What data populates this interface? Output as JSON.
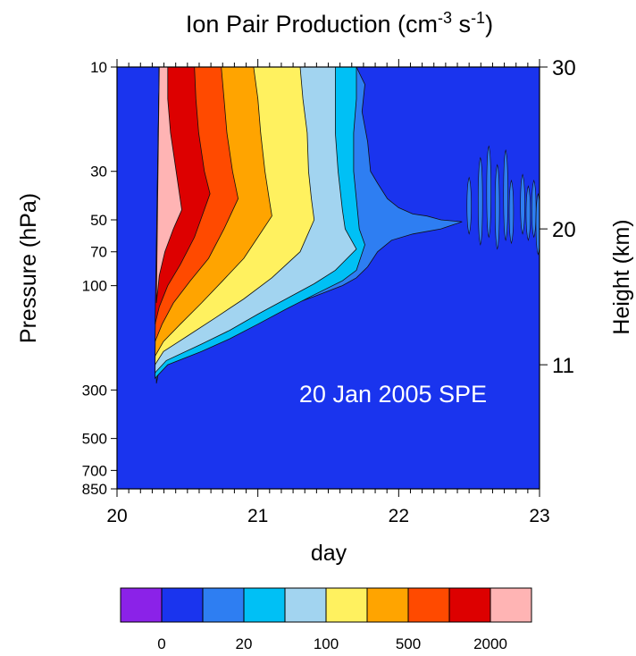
{
  "chart_data": {
    "type": "heatmap",
    "title_parts": {
      "main": "Ion Pair Production (cm",
      "exp1": "-3",
      "mid": " s",
      "exp2": "-1",
      "end": ")"
    },
    "xlabel": "day",
    "ylabel": "Pressure (hPa)",
    "y2label": "Height (km)",
    "annotation": "20 Jan 2005 SPE",
    "x_range": [
      20,
      23
    ],
    "x_ticks": [
      20,
      21,
      22,
      23
    ],
    "y_scale": "log",
    "y_range_hpa": [
      10,
      850
    ],
    "y_ticks": [
      10,
      30,
      50,
      70,
      100,
      300,
      500,
      700,
      850
    ],
    "y2_ticks_km": [
      30,
      20,
      11
    ],
    "y2_tick_pressures_hpa": [
      10,
      55,
      230
    ],
    "colorbar": {
      "colors": [
        "#8b22e8",
        "#1a34ee",
        "#2e7ef2",
        "#00c0f5",
        "#a2d4f0",
        "#fff15f",
        "#ffa400",
        "#ff4a00",
        "#dd0000",
        "#ffb4b4"
      ],
      "labels": [
        {
          "text": "0",
          "index": 1
        },
        {
          "text": "20",
          "index": 3
        },
        {
          "text": "100",
          "index": 5
        },
        {
          "text": "500",
          "index": 7
        },
        {
          "text": "2000",
          "index": 9
        }
      ]
    },
    "background_color": "#1a34ee",
    "contour_levels": [
      {
        "level": 1,
        "color": "#2e7ef2",
        "onset_day": 20.3,
        "bottom_pressure_hpa": 280,
        "top_boundary": [
          [
            20.3,
            10
          ],
          [
            21.7,
            10
          ],
          [
            21.76,
            12
          ],
          [
            21.74,
            16
          ],
          [
            21.78,
            22
          ],
          [
            21.8,
            30
          ],
          [
            21.85,
            34
          ],
          [
            21.92,
            40
          ],
          [
            22.0,
            44
          ],
          [
            22.1,
            47
          ],
          [
            22.2,
            48
          ],
          [
            22.3,
            50
          ],
          [
            22.45,
            51
          ]
        ],
        "bottom_boundary": [
          [
            20.28,
            280
          ],
          [
            20.3,
            240
          ],
          [
            20.38,
            220
          ],
          [
            20.6,
            190
          ],
          [
            20.8,
            160
          ],
          [
            21.0,
            140
          ],
          [
            21.2,
            125
          ],
          [
            21.4,
            112
          ],
          [
            21.6,
            100
          ],
          [
            21.7,
            92
          ],
          [
            21.78,
            82
          ],
          [
            21.85,
            70
          ],
          [
            21.95,
            62
          ],
          [
            22.1,
            58
          ],
          [
            22.3,
            55
          ],
          [
            22.45,
            51
          ]
        ]
      },
      {
        "level": 2,
        "color": "#00c0f5",
        "top": [
          [
            20.3,
            10
          ],
          [
            21.7,
            10
          ],
          [
            21.7,
            14
          ],
          [
            21.68,
            20
          ],
          [
            21.68,
            30
          ],
          [
            21.72,
            55
          ],
          [
            21.76,
            65
          ]
        ],
        "bottom": [
          [
            20.27,
            265
          ],
          [
            20.36,
            230
          ],
          [
            20.6,
            200
          ],
          [
            20.8,
            175
          ],
          [
            21.0,
            150
          ],
          [
            21.2,
            128
          ],
          [
            21.4,
            110
          ],
          [
            21.6,
            95
          ],
          [
            21.7,
            85
          ],
          [
            21.76,
            65
          ]
        ]
      },
      {
        "level": 3,
        "color": "#a2d4f0",
        "top": [
          [
            20.3,
            10
          ],
          [
            21.55,
            10
          ],
          [
            21.55,
            14
          ],
          [
            21.55,
            20
          ],
          [
            21.57,
            30
          ],
          [
            21.6,
            45
          ],
          [
            21.62,
            55
          ],
          [
            21.7,
            68
          ]
        ],
        "bottom": [
          [
            20.27,
            250
          ],
          [
            20.35,
            220
          ],
          [
            20.6,
            185
          ],
          [
            20.8,
            160
          ],
          [
            21.0,
            135
          ],
          [
            21.2,
            115
          ],
          [
            21.4,
            98
          ],
          [
            21.55,
            85
          ],
          [
            21.7,
            68
          ]
        ]
      },
      {
        "level": 4,
        "color": "#fff15f",
        "top": [
          [
            20.3,
            10
          ],
          [
            21.3,
            10
          ],
          [
            21.32,
            14
          ],
          [
            21.35,
            20
          ],
          [
            21.36,
            30
          ],
          [
            21.38,
            40
          ],
          [
            21.4,
            50
          ]
        ],
        "bottom": [
          [
            20.27,
            230
          ],
          [
            20.33,
            200
          ],
          [
            20.5,
            170
          ],
          [
            20.7,
            140
          ],
          [
            20.9,
            115
          ],
          [
            21.1,
            92
          ],
          [
            21.3,
            70
          ],
          [
            21.4,
            50
          ]
        ]
      },
      {
        "level": 5,
        "color": "#ffa400",
        "top": [
          [
            20.3,
            10
          ],
          [
            20.97,
            10
          ],
          [
            21.0,
            14
          ],
          [
            21.02,
            20
          ],
          [
            21.05,
            30
          ],
          [
            21.08,
            40
          ],
          [
            21.1,
            48
          ]
        ],
        "bottom": [
          [
            20.27,
            210
          ],
          [
            20.33,
            180
          ],
          [
            20.45,
            150
          ],
          [
            20.6,
            120
          ],
          [
            20.75,
            95
          ],
          [
            20.9,
            75
          ],
          [
            21.0,
            60
          ],
          [
            21.1,
            48
          ]
        ]
      },
      {
        "level": 6,
        "color": "#ff4a00",
        "top": [
          [
            20.3,
            10
          ],
          [
            20.74,
            10
          ],
          [
            20.76,
            14
          ],
          [
            20.78,
            20
          ],
          [
            20.82,
            30
          ],
          [
            20.86,
            40
          ]
        ],
        "bottom": [
          [
            20.27,
            180
          ],
          [
            20.32,
            150
          ],
          [
            20.4,
            120
          ],
          [
            20.52,
            95
          ],
          [
            20.65,
            75
          ],
          [
            20.76,
            55
          ],
          [
            20.86,
            40
          ]
        ]
      },
      {
        "level": 7,
        "color": "#dd0000",
        "top": [
          [
            20.3,
            10
          ],
          [
            20.55,
            10
          ],
          [
            20.56,
            14
          ],
          [
            20.58,
            20
          ],
          [
            20.62,
            30
          ],
          [
            20.66,
            38
          ]
        ],
        "bottom": [
          [
            20.27,
            150
          ],
          [
            20.3,
            125
          ],
          [
            20.36,
            100
          ],
          [
            20.45,
            80
          ],
          [
            20.55,
            60
          ],
          [
            20.66,
            38
          ]
        ]
      },
      {
        "level": 8,
        "color": "#ffb4b4",
        "top": [
          [
            20.3,
            10
          ],
          [
            20.36,
            10
          ],
          [
            20.36,
            14
          ],
          [
            20.38,
            20
          ],
          [
            20.42,
            30
          ],
          [
            20.46,
            45
          ]
        ],
        "bottom": [
          [
            20.28,
            120
          ],
          [
            20.3,
            90
          ],
          [
            20.34,
            70
          ],
          [
            20.4,
            55
          ],
          [
            20.46,
            45
          ]
        ]
      }
    ],
    "scattered_patches": {
      "color": "#2e7ef2",
      "centers_day": [
        22.5,
        22.58,
        22.64,
        22.7,
        22.76,
        22.8,
        22.88,
        22.92,
        22.96,
        22.99
      ],
      "top_hpa": [
        32,
        26,
        23,
        28,
        24,
        33,
        31,
        35,
        33,
        38
      ],
      "bottom_hpa": [
        58,
        65,
        60,
        68,
        62,
        64,
        58,
        62,
        60,
        72
      ]
    }
  }
}
